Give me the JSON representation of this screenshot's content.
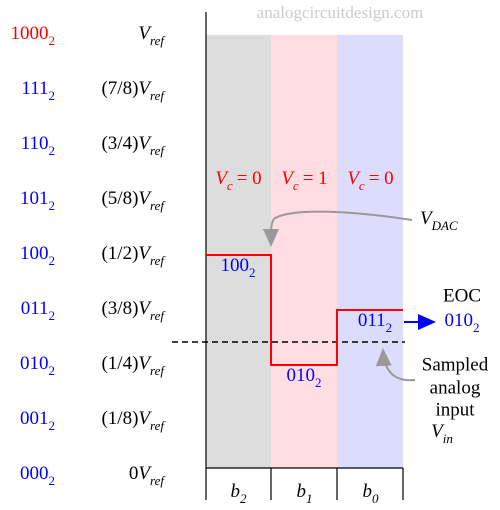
{
  "watermark": "analogcircuitdesign.com",
  "levels": [
    {
      "code": "1000",
      "base": "2",
      "symbol": "V",
      "sub": "ref"
    },
    {
      "code": "111",
      "base": "2",
      "scale": "(7/8)",
      "symbol": "V",
      "sub": "ref"
    },
    {
      "code": "110",
      "base": "2",
      "scale": "(3/4)",
      "symbol": "V",
      "sub": "ref"
    },
    {
      "code": "101",
      "base": "2",
      "scale": "(5/8)",
      "symbol": "V",
      "sub": "ref"
    },
    {
      "code": "100",
      "base": "2",
      "scale": "(1/2)",
      "symbol": "V",
      "sub": "ref"
    },
    {
      "code": "011",
      "base": "2",
      "scale": "(3/8)",
      "symbol": "V",
      "sub": "ref"
    },
    {
      "code": "010",
      "base": "2",
      "scale": "(1/4)",
      "symbol": "V",
      "sub": "ref"
    },
    {
      "code": "001",
      "base": "2",
      "scale": "(1/8)",
      "symbol": "V",
      "sub": "ref"
    },
    {
      "code": "000",
      "base": "2",
      "scale": "0",
      "symbol": "V",
      "sub": "ref"
    }
  ],
  "phases": [
    {
      "symbol": "V",
      "sub": "c",
      "rest": "= 0"
    },
    {
      "symbol": "V",
      "sub": "c",
      "rest": "= 1"
    },
    {
      "symbol": "V",
      "sub": "c",
      "rest": "= 0"
    }
  ],
  "bits": [
    {
      "symbol": "b",
      "sub": "2"
    },
    {
      "symbol": "b",
      "sub": "1"
    },
    {
      "symbol": "b",
      "sub": "0"
    }
  ],
  "dac_label": {
    "symbol": "V",
    "sub": "DAC"
  },
  "step_codes": [
    {
      "code": "100",
      "base": "2"
    },
    {
      "code": "010",
      "base": "2"
    },
    {
      "code": "011",
      "base": "2"
    }
  ],
  "eoc": {
    "label": "EOC",
    "code": "010",
    "base": "2"
  },
  "input_label": {
    "lines": [
      "Sampled",
      "analog",
      "input"
    ],
    "symbol": "V",
    "sub": "in"
  }
}
